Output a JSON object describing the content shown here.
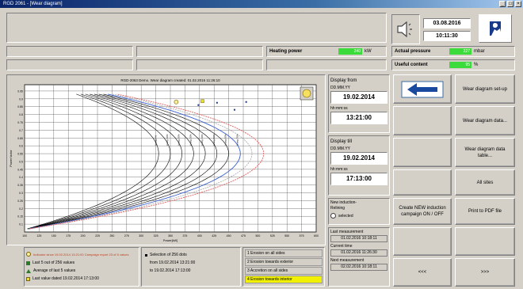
{
  "window": {
    "title": "RGD 2061 - [Wear diagram]",
    "min": "_",
    "max": "□",
    "close": "×"
  },
  "header": {
    "date": "03.08.2016",
    "time": "10:11:30"
  },
  "status": {
    "heating_label": "Heating power",
    "heating_value": "240",
    "heating_unit": "kW",
    "pressure_label": "Actual pressure",
    "pressure_value": "227",
    "pressure_unit": "mbar",
    "useful_label": "Useful content",
    "useful_value": "95",
    "useful_unit": "%"
  },
  "display_from": {
    "label": "Display from",
    "date_fmt": "DD.MM.YY",
    "date": "19.02.2014",
    "time_fmt": "hh:mm:ss",
    "time": "13:21:00"
  },
  "display_to": {
    "label": "Display till",
    "date_fmt": "DD.MM.YY",
    "date": "19.02.2014",
    "time_fmt": "hh:mm:ss",
    "time": "17:13:00"
  },
  "new_relining": {
    "label": "New induction-Relining",
    "radio": "selected"
  },
  "last_meas": {
    "label": "Last measurement",
    "value": "01.02.2016 10:18:11"
  },
  "current_time": {
    "label": "Current time",
    "value": "01.02.2016 11:26:30"
  },
  "next_meas": {
    "label": "Next measurement",
    "value": "02.02.2016 10:18:11"
  },
  "buttons": {
    "setup": "Wear diagram set-up",
    "data": "Wear diagram data...",
    "table": "Wear diagram data table...",
    "all_sites": "All sites",
    "create_campaign": "Create NEW induction campaign ON / OFF",
    "print_pdf": "Print to PDF file",
    "dots_left": "<<<",
    "dots_right": ">>>"
  },
  "legend": {
    "item1": "Indicator since 19.02.2014 13:21:00 Campaign report 23 of 5 values",
    "item2": "Last 5 out of 256 values",
    "item3": "Average of last 5 values",
    "item4": "Last value dated 19.02.2014 17:13:00",
    "sel1": "Selection of 256 dots",
    "sel2": "from 19.02.2014 13:21:00",
    "sel3": "to 19.02.2014 17:13:00",
    "opt1": "1 Erosion on all sides",
    "opt2": "2 Erosion towards exterior",
    "opt3": "3 Accretion on all sides",
    "opt4": "4 Erosion towards interior"
  },
  "chart_data": {
    "type": "line",
    "title": "RGD-2063 Demo. Wear diagram created: 01.02.2016 11:26:10",
    "xlabel": "Power[kW]",
    "ylabel": "Power factor",
    "x_ticks": [
      "100",
      "125",
      "150",
      "175",
      "200",
      "225",
      "250",
      "275",
      "300",
      "325",
      "350",
      "375",
      "400",
      "425",
      "450",
      "475",
      "500",
      "525",
      "550",
      "575",
      "600"
    ],
    "y_ticks": [
      "0.95",
      "0.9",
      "0.85",
      "0.8",
      "0.75",
      "0.7",
      "0.65",
      "0.6",
      "0.55",
      "0.5",
      "0.45",
      "0.4",
      "0.35",
      "0.3",
      "0.25",
      "0.2",
      "0.15",
      "0.1"
    ],
    "xlim": [
      100,
      600
    ],
    "ylim": [
      0.05,
      0.99
    ],
    "curve_labels": [
      "Lining 0%",
      "Lining 10%",
      "Lining 20%",
      "Lining 30%",
      "Lining 40%",
      "Lining 50%",
      "Lining 60%",
      "Lining 70%"
    ],
    "curve_peaks": [
      330,
      350,
      370,
      390,
      410,
      430,
      450,
      470,
      490,
      510
    ],
    "curve_colors": [
      "#000",
      "#000",
      "#000",
      "#000",
      "#000",
      "#000",
      "#000",
      "#3a5fd0",
      "#b0b0b0",
      "#e06060"
    ],
    "points": [
      {
        "x": 360,
        "y": 0.88
      },
      {
        "x": 398,
        "y": 0.86
      },
      {
        "x": 405,
        "y": 0.885
      },
      {
        "x": 430,
        "y": 0.875
      },
      {
        "x": 460,
        "y": 0.83
      },
      {
        "x": 480,
        "y": 0.88
      }
    ],
    "grid": true
  }
}
